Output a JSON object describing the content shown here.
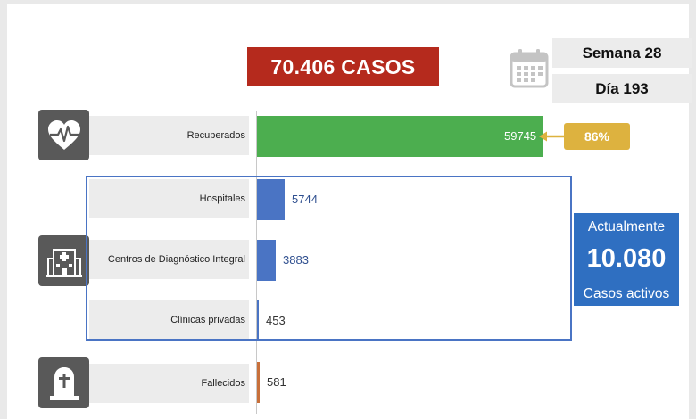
{
  "header": {
    "total_cases": "70.406 CASOS",
    "week_label": "Semana 28",
    "day_label": "Día 193"
  },
  "active": {
    "line1": "Actualmente",
    "count": "10.080",
    "line2": "Casos activos"
  },
  "recovered_percent": "86%",
  "colors": {
    "total_badge": "#b52a1d",
    "recovered": "#4cae4f",
    "hospitalized": "#4a74c4",
    "deceased": "#c8703a",
    "percent_badge": "#ddb23f",
    "active_box": "#2f6fc1",
    "icon_tile": "#595959"
  },
  "icons": [
    "heart-pulse-icon",
    "hospital-icon",
    "tombstone-icon",
    "calendar-icon"
  ],
  "chart_data": {
    "type": "bar",
    "orientation": "horizontal",
    "categories": [
      "Recuperados",
      "Hospitales",
      "Centros de Diagnóstico Integral",
      "Clínicas privadas",
      "Fallecidos"
    ],
    "values": [
      59745,
      5744,
      3883,
      453,
      581
    ],
    "value_labels": [
      "59745",
      "5744",
      "3883",
      "453",
      "581"
    ],
    "xlim": [
      0,
      59745
    ],
    "grid": false
  }
}
